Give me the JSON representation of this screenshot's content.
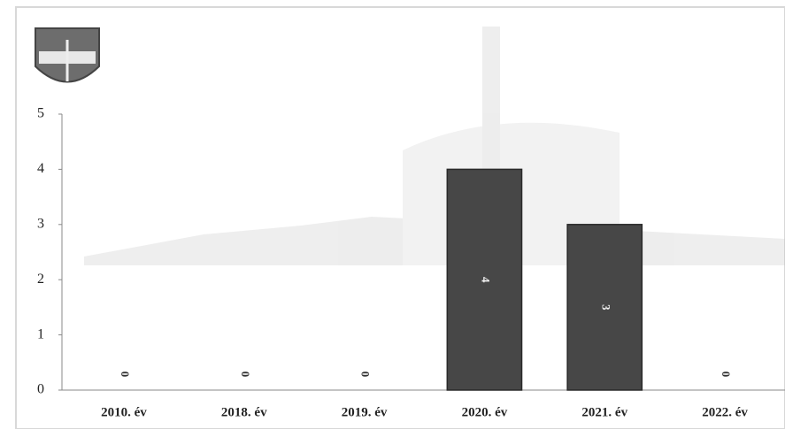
{
  "chart_data": {
    "type": "bar",
    "categories": [
      "2010. év",
      "2018. év",
      "2019. év",
      "2020. év",
      "2021. év",
      "2022. év"
    ],
    "values": [
      0,
      0,
      0,
      4,
      3,
      0
    ],
    "color": "#474747",
    "ylim": [
      0,
      5
    ],
    "yticks": [
      0,
      1,
      2,
      3,
      4,
      5
    ],
    "grid": false
  }
}
